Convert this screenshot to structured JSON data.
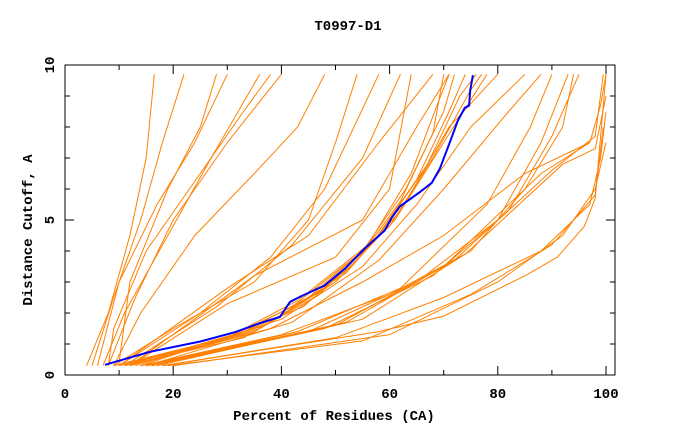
{
  "chart_data": {
    "type": "line",
    "title": "T0997-D1",
    "xlabel": "Percent of Residues (CA)",
    "ylabel": "Distance Cutoff, A",
    "xlim": [
      0,
      102
    ],
    "ylim": [
      0,
      10
    ],
    "xticks": [
      0,
      20,
      40,
      60,
      80,
      100
    ],
    "yticks": [
      0,
      5,
      10
    ],
    "grid": false,
    "colors": {
      "models": "#ff8000",
      "highlight": "#0000ff",
      "frame": "#000000"
    },
    "highlight_series": [
      [
        7.4,
        0.33
      ],
      [
        15.7,
        0.75
      ],
      [
        25,
        1.08
      ],
      [
        31.4,
        1.38
      ],
      [
        36,
        1.67
      ],
      [
        39.7,
        1.87
      ],
      [
        41.6,
        2.36
      ],
      [
        43.4,
        2.52
      ],
      [
        48,
        2.89
      ],
      [
        51.8,
        3.44
      ],
      [
        55.5,
        4.1
      ],
      [
        59.1,
        4.66
      ],
      [
        60.4,
        5.08
      ],
      [
        61.9,
        5.44
      ],
      [
        65.6,
        5.9
      ],
      [
        67.8,
        6.2
      ],
      [
        69.3,
        6.66
      ],
      [
        71.2,
        7.54
      ],
      [
        72.6,
        8.2
      ],
      [
        73.9,
        8.62
      ],
      [
        74.7,
        8.69
      ],
      [
        74.9,
        9.18
      ],
      [
        75.4,
        9.67
      ]
    ],
    "model_series": [
      [
        [
          4,
          0.3
        ],
        [
          8,
          2
        ],
        [
          12,
          4.5
        ],
        [
          15,
          7
        ],
        [
          16.5,
          9.7
        ]
      ],
      [
        [
          5,
          0.3
        ],
        [
          9,
          2.5
        ],
        [
          14,
          5
        ],
        [
          18,
          7.5
        ],
        [
          22,
          9.7
        ]
      ],
      [
        [
          6,
          0.3
        ],
        [
          10,
          3
        ],
        [
          17,
          5.5
        ],
        [
          24,
          7.5
        ],
        [
          30,
          9.7
        ]
      ],
      [
        [
          7,
          0.3
        ],
        [
          11,
          2
        ],
        [
          19,
          4.5
        ],
        [
          27,
          7
        ],
        [
          36,
          9.7
        ]
      ],
      [
        [
          8,
          0.3
        ],
        [
          9,
          1.5
        ],
        [
          15,
          4
        ],
        [
          23,
          6
        ],
        [
          33,
          8.5
        ],
        [
          38,
          9.7
        ]
      ],
      [
        [
          8,
          0.3
        ],
        [
          13,
          2.5
        ],
        [
          20,
          5
        ],
        [
          30,
          7.5
        ],
        [
          40,
          9.7
        ]
      ],
      [
        [
          9,
          0.3
        ],
        [
          14,
          2
        ],
        [
          24,
          4.5
        ],
        [
          35,
          6.5
        ],
        [
          43,
          8
        ],
        [
          48,
          9.7
        ]
      ],
      [
        [
          10,
          0.4
        ],
        [
          12,
          3
        ],
        [
          19,
          6
        ],
        [
          25,
          8
        ],
        [
          28,
          9.7
        ]
      ],
      [
        [
          9,
          0.3
        ],
        [
          20,
          1.5
        ],
        [
          35,
          3
        ],
        [
          45,
          5
        ],
        [
          50,
          7.5
        ],
        [
          54,
          9.7
        ]
      ],
      [
        [
          10,
          0.3
        ],
        [
          25,
          2
        ],
        [
          38,
          3.8
        ],
        [
          48,
          6
        ],
        [
          58,
          9.7
        ]
      ],
      [
        [
          11,
          0.3
        ],
        [
          28,
          2.2
        ],
        [
          42,
          4.2
        ],
        [
          55,
          7
        ],
        [
          62,
          9.7
        ]
      ],
      [
        [
          10,
          0.3
        ],
        [
          30,
          2.8
        ],
        [
          45,
          4.5
        ],
        [
          58,
          7.5
        ],
        [
          68,
          9.7
        ]
      ],
      [
        [
          12,
          0.3
        ],
        [
          35,
          3.2
        ],
        [
          55,
          5
        ],
        [
          65,
          8
        ],
        [
          71,
          9.7
        ]
      ],
      [
        [
          13,
          0.4
        ],
        [
          30,
          2.3
        ],
        [
          50,
          3.8
        ],
        [
          60,
          6
        ],
        [
          64,
          9.7
        ]
      ],
      [
        [
          9,
          0.3
        ],
        [
          30,
          1.2
        ],
        [
          42,
          2.2
        ],
        [
          55,
          4
        ],
        [
          63,
          6
        ],
        [
          70,
          8.5
        ],
        [
          72,
          9.7
        ]
      ],
      [
        [
          10,
          0.3
        ],
        [
          32,
          1.3
        ],
        [
          45,
          2.5
        ],
        [
          57,
          4.3
        ],
        [
          65,
          6.3
        ],
        [
          71,
          8.5
        ],
        [
          74,
          9.7
        ]
      ],
      [
        [
          11,
          0.3
        ],
        [
          33,
          1.2
        ],
        [
          47,
          2.6
        ],
        [
          58,
          4.5
        ],
        [
          67,
          6.8
        ],
        [
          73,
          9
        ],
        [
          76,
          9.7
        ]
      ],
      [
        [
          10,
          0.3
        ],
        [
          29,
          1.1
        ],
        [
          44,
          2.2
        ],
        [
          54,
          3.7
        ],
        [
          62,
          5.6
        ],
        [
          68,
          7.8
        ],
        [
          70,
          9.7
        ]
      ],
      [
        [
          12,
          0.3
        ],
        [
          35,
          1.4
        ],
        [
          48,
          2.8
        ],
        [
          60,
          4.8
        ],
        [
          68,
          7
        ],
        [
          75,
          9.2
        ],
        [
          77,
          9.7
        ]
      ],
      [
        [
          13,
          0.3
        ],
        [
          36,
          1.5
        ],
        [
          50,
          3
        ],
        [
          61,
          5
        ],
        [
          70,
          7.5
        ],
        [
          78,
          9.7
        ]
      ],
      [
        [
          11,
          0.3
        ],
        [
          31,
          1.3
        ],
        [
          43,
          2.4
        ],
        [
          56,
          4.2
        ],
        [
          64,
          6.5
        ],
        [
          69,
          8.8
        ],
        [
          71,
          9.7
        ]
      ],
      [
        [
          12,
          0.3
        ],
        [
          37,
          1.6
        ],
        [
          52,
          3.3
        ],
        [
          62,
          5.3
        ],
        [
          71,
          8
        ],
        [
          80,
          9.7
        ]
      ],
      [
        [
          14,
          0.3
        ],
        [
          40,
          1.8
        ],
        [
          55,
          3.5
        ],
        [
          65,
          5.5
        ],
        [
          75,
          8
        ],
        [
          85,
          9.7
        ]
      ],
      [
        [
          15,
          0.3
        ],
        [
          42,
          1.7
        ],
        [
          58,
          3.7
        ],
        [
          70,
          6
        ],
        [
          82,
          8.5
        ],
        [
          88,
          9.7
        ]
      ],
      [
        [
          14,
          0.3
        ],
        [
          40,
          1.3
        ],
        [
          60,
          2.6
        ],
        [
          75,
          4
        ],
        [
          85,
          6
        ],
        [
          92,
          8
        ],
        [
          94,
          9.7
        ]
      ],
      [
        [
          15,
          0.3
        ],
        [
          45,
          1.4
        ],
        [
          65,
          3
        ],
        [
          80,
          5
        ],
        [
          88,
          7.5
        ],
        [
          93,
          9.7
        ]
      ],
      [
        [
          16,
          0.3
        ],
        [
          48,
          1.5
        ],
        [
          68,
          3.2
        ],
        [
          82,
          5.3
        ],
        [
          90,
          7.7
        ],
        [
          95,
          9.7
        ]
      ],
      [
        [
          15,
          0.3
        ],
        [
          43,
          1.4
        ],
        [
          62,
          2.8
        ],
        [
          78,
          5.5
        ],
        [
          86,
          8
        ],
        [
          90,
          9.7
        ]
      ],
      [
        [
          14,
          0.3
        ],
        [
          50,
          1.6
        ],
        [
          70,
          3.5
        ],
        [
          88,
          6.5
        ],
        [
          97,
          7.5
        ],
        [
          99,
          8.7
        ],
        [
          100,
          9.7
        ]
      ],
      [
        [
          16,
          0.3
        ],
        [
          52,
          1.7
        ],
        [
          72,
          3.7
        ],
        [
          90,
          6.6
        ],
        [
          98,
          7.7
        ],
        [
          99.5,
          9.7
        ]
      ],
      [
        [
          17,
          0.3
        ],
        [
          55,
          1.8
        ],
        [
          74,
          3.9
        ],
        [
          92,
          6.8
        ],
        [
          98,
          7.3
        ],
        [
          100,
          9
        ]
      ],
      [
        [
          12,
          0.3
        ],
        [
          38,
          1.5
        ],
        [
          55,
          3
        ],
        [
          70,
          4.5
        ],
        [
          85,
          6.5
        ],
        [
          97,
          7.5
        ]
      ],
      [
        [
          18,
          0.3
        ],
        [
          50,
          1.2
        ],
        [
          70,
          2.5
        ],
        [
          88,
          4
        ],
        [
          97,
          5.5
        ],
        [
          99,
          7
        ],
        [
          100,
          8.5
        ]
      ],
      [
        [
          19,
          0.3
        ],
        [
          55,
          1.1
        ],
        [
          75,
          2.6
        ],
        [
          90,
          4.2
        ],
        [
          98,
          5.8
        ],
        [
          99.5,
          8
        ]
      ],
      [
        [
          20,
          0.3
        ],
        [
          60,
          1.3
        ],
        [
          80,
          3
        ],
        [
          92,
          4.5
        ],
        [
          98,
          6
        ],
        [
          100,
          7.5
        ]
      ],
      [
        [
          18,
          0.3
        ],
        [
          58,
          1.4
        ],
        [
          70,
          1.9
        ],
        [
          85,
          3.2
        ],
        [
          91,
          3.8
        ],
        [
          96,
          4.8
        ],
        [
          98,
          5.7
        ],
        [
          100,
          9.7
        ]
      ]
    ]
  }
}
